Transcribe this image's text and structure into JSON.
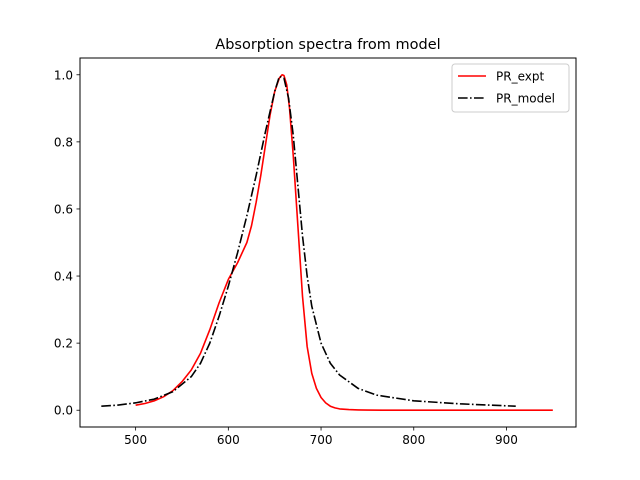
{
  "chart_data": {
    "type": "line",
    "title": "Absorption spectra from model",
    "xlabel": "",
    "ylabel": "",
    "xlim": [
      440,
      975
    ],
    "ylim": [
      -0.05,
      1.05
    ],
    "xticks": [
      500,
      600,
      700,
      800,
      900
    ],
    "yticks": [
      0.0,
      0.2,
      0.4,
      0.6,
      0.8,
      1.0
    ],
    "ytick_labels": [
      "0.0",
      "0.2",
      "0.4",
      "0.6",
      "0.8",
      "1.0"
    ],
    "grid": false,
    "legend_position": "top-right",
    "series": [
      {
        "name": "PR_expt",
        "color": "#ff0000",
        "style": "solid",
        "x": [
          500,
          510,
          520,
          530,
          540,
          550,
          560,
          570,
          580,
          590,
          600,
          610,
          620,
          625,
          630,
          635,
          640,
          645,
          650,
          655,
          658,
          660,
          663,
          666,
          670,
          675,
          680,
          685,
          690,
          695,
          700,
          705,
          710,
          715,
          720,
          730,
          740,
          750,
          780,
          850,
          950
        ],
        "y": [
          0.015,
          0.02,
          0.028,
          0.04,
          0.058,
          0.085,
          0.12,
          0.17,
          0.24,
          0.32,
          0.39,
          0.44,
          0.5,
          0.55,
          0.62,
          0.7,
          0.79,
          0.88,
          0.95,
          0.99,
          1.0,
          0.998,
          0.97,
          0.9,
          0.76,
          0.55,
          0.34,
          0.19,
          0.11,
          0.065,
          0.038,
          0.022,
          0.012,
          0.007,
          0.004,
          0.002,
          0.001,
          0.0005,
          0.0,
          0.0,
          0.0
        ]
      },
      {
        "name": "PR_model",
        "color": "#000000",
        "style": "dashdot",
        "x": [
          463,
          480,
          500,
          520,
          540,
          560,
          570,
          580,
          590,
          600,
          610,
          620,
          630,
          640,
          650,
          655,
          660,
          665,
          670,
          675,
          680,
          685,
          690,
          700,
          710,
          720,
          740,
          760,
          800,
          850,
          910
        ],
        "y": [
          0.012,
          0.015,
          0.022,
          0.033,
          0.055,
          0.1,
          0.14,
          0.2,
          0.28,
          0.37,
          0.47,
          0.58,
          0.7,
          0.83,
          0.95,
          0.995,
          0.99,
          0.93,
          0.82,
          0.67,
          0.52,
          0.4,
          0.31,
          0.2,
          0.14,
          0.105,
          0.065,
          0.045,
          0.028,
          0.019,
          0.012
        ]
      }
    ]
  }
}
